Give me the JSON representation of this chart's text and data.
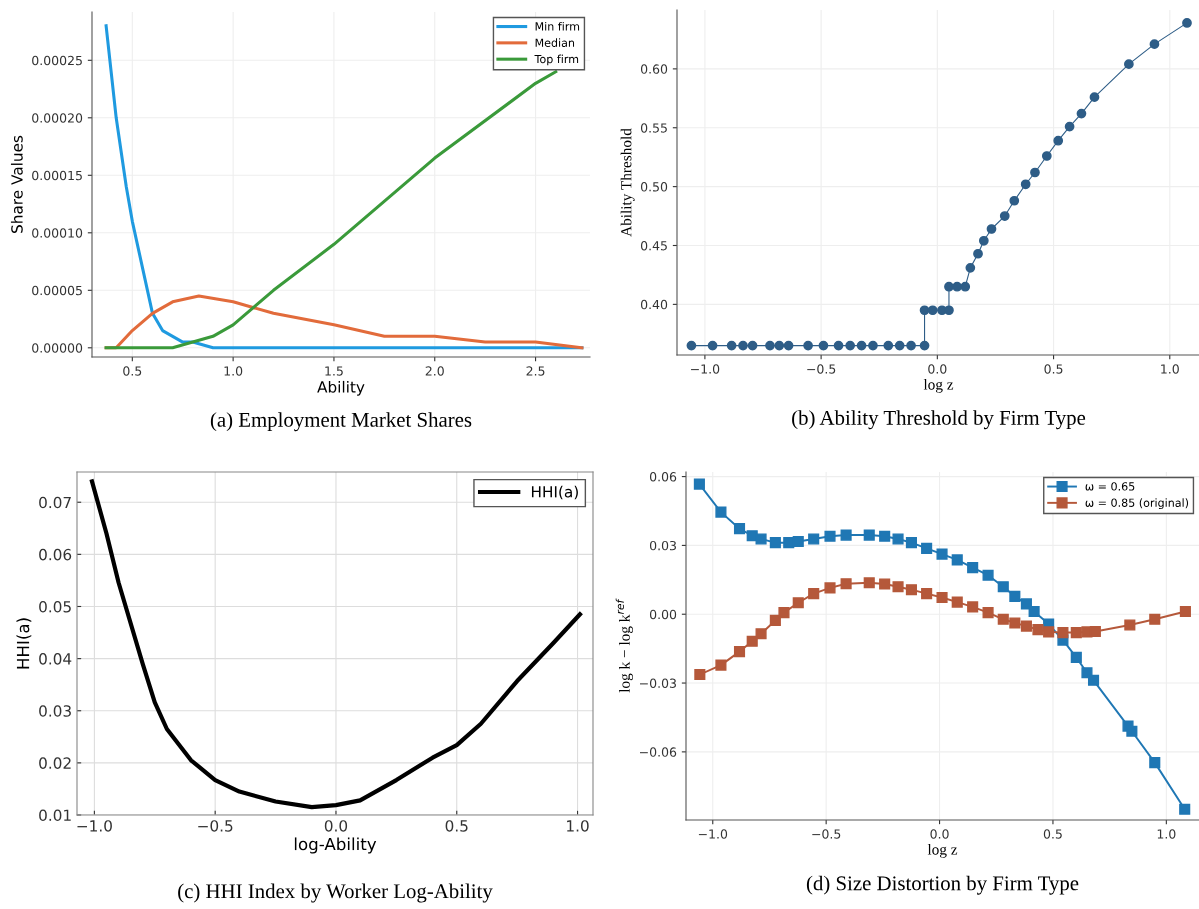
{
  "chart_data": [
    {
      "type": "line",
      "title": "(a) Employment Market Shares",
      "xlabel": "Ability",
      "ylabel": "Share Values",
      "xlim": [
        0.3,
        2.77
      ],
      "xticks": [
        0.5,
        {
          "value": 1.0,
          "label": "1.0"
        },
        1.5,
        {
          "value": 2.0,
          "label": "2.0"
        },
        2.5
      ],
      "ylim": [
        -8e-06,
        0.000292
      ],
      "yticks": [
        {
          "value": 0,
          "label": "0.00000"
        },
        {
          "value": 5e-05,
          "label": "0.00005"
        },
        {
          "value": 0.0001,
          "label": "0.00010"
        },
        {
          "value": 0.00015,
          "label": "0.00015"
        },
        {
          "value": 0.0002,
          "label": "0.00020"
        },
        {
          "value": 0.00025,
          "label": "0.00025"
        }
      ],
      "grid": true,
      "legend": "top right",
      "marker": "none",
      "line_style": "solid",
      "series": [
        {
          "name": "Min firm",
          "color": "#1f9ae0",
          "x": [
            0.37,
            0.42,
            0.47,
            0.5,
            0.55,
            0.6,
            0.65,
            0.7,
            0.75,
            0.8,
            0.9,
            1.0,
            1.5,
            2.0,
            2.5,
            2.73
          ],
          "values": [
            0.00028,
            0.0002,
            0.00014,
            0.00011,
            7e-05,
            3e-05,
            1.5e-05,
            1e-05,
            5e-06,
            5e-06,
            0,
            0,
            0,
            0,
            0,
            0
          ]
        },
        {
          "name": "Median",
          "color": "#e26b3b",
          "x": [
            0.37,
            0.42,
            0.5,
            0.6,
            0.7,
            0.83,
            1.0,
            1.2,
            1.5,
            1.75,
            2.0,
            2.25,
            2.5,
            2.73
          ],
          "values": [
            0,
            0,
            1.5e-05,
            3e-05,
            4e-05,
            4.5e-05,
            4e-05,
            3e-05,
            2e-05,
            1e-05,
            1e-05,
            5e-06,
            5e-06,
            0
          ]
        },
        {
          "name": "Top firm",
          "color": "#3a9a3a",
          "x": [
            0.37,
            0.5,
            0.6,
            0.7,
            0.8,
            0.9,
            1.0,
            1.1,
            1.2,
            1.5,
            2.0,
            2.5,
            2.6
          ],
          "values": [
            0,
            0,
            0,
            0,
            5e-06,
            1e-05,
            2e-05,
            3.5e-05,
            5e-05,
            9e-05,
            0.000165,
            0.00023,
            0.00024
          ]
        }
      ]
    },
    {
      "type": "scatter",
      "title": "(b) Ability Threshold by Firm Type",
      "xlabel": "log z",
      "ylabel": "Ability Threshold",
      "xlim": [
        -1.12,
        1.13
      ],
      "xticks": [
        {
          "value": -1.0,
          "label": "−1.0"
        },
        {
          "value": -0.5,
          "label": "−0.5"
        },
        {
          "value": 0.0,
          "label": "0.0"
        },
        {
          "value": 0.5,
          "label": "0.5"
        },
        {
          "value": 1.0,
          "label": "1.0"
        }
      ],
      "ylim": [
        0.357,
        0.65
      ],
      "yticks": [
        {
          "value": 0.4,
          "label": "0.40"
        },
        {
          "value": 0.45,
          "label": "0.45"
        },
        {
          "value": 0.5,
          "label": "0.50"
        },
        {
          "value": 0.55,
          "label": "0.55"
        },
        {
          "value": 0.6,
          "label": "0.60"
        }
      ],
      "grid": true,
      "series": [
        {
          "type": "line",
          "color": "#2e5d87",
          "marker": "circle",
          "line_style": "solid",
          "x": [
            -1.058,
            -0.967,
            -0.885,
            -0.836,
            -0.795,
            -0.72,
            -0.68,
            -0.64,
            -0.556,
            -0.49,
            -0.425,
            -0.375,
            -0.326,
            -0.277,
            -0.211,
            -0.162,
            -0.113,
            -0.055,
            -0.055,
            -0.02,
            0.02,
            0.05,
            0.05,
            0.085,
            0.12,
            0.142,
            0.175,
            0.2,
            0.233,
            0.29,
            0.331,
            0.38,
            0.42,
            0.471,
            0.52,
            0.569,
            0.62,
            0.676,
            0.824,
            0.934,
            1.074
          ],
          "values": [
            0.365,
            0.365,
            0.365,
            0.365,
            0.365,
            0.365,
            0.365,
            0.365,
            0.365,
            0.365,
            0.365,
            0.365,
            0.365,
            0.365,
            0.365,
            0.365,
            0.365,
            0.365,
            0.395,
            0.395,
            0.395,
            0.395,
            0.415,
            0.415,
            0.415,
            0.431,
            0.443,
            0.454,
            0.464,
            0.475,
            0.488,
            0.502,
            0.512,
            0.526,
            0.539,
            0.551,
            0.562,
            0.576,
            0.604,
            0.621,
            0.639
          ]
        }
      ]
    },
    {
      "type": "line",
      "title": "(c) HHI Index by Worker Log-Ability",
      "xlabel": "log-Ability",
      "ylabel": "HHI(a)",
      "xlim": [
        -1.072,
        1.064
      ],
      "xticks": [
        {
          "value": -1.0,
          "label": "−1.0"
        },
        {
          "value": -0.5,
          "label": "−0.5"
        },
        {
          "value": 0.0,
          "label": "0.0"
        },
        {
          "value": 0.5,
          "label": "0.5"
        },
        {
          "value": 1.0,
          "label": "1.0"
        }
      ],
      "ylim": [
        0.01,
        0.0758
      ],
      "yticks": [
        0.01,
        0.02,
        0.03,
        0.04,
        0.05,
        0.06,
        0.07
      ],
      "grid": true,
      "legend": "top right",
      "marker": "none",
      "line_style": "solid",
      "series": [
        {
          "name": "HHI(a)",
          "color": "#000000",
          "x": [
            -1.01,
            -0.95,
            -0.9,
            -0.8,
            -0.75,
            -0.7,
            -0.6,
            -0.5,
            -0.4,
            -0.25,
            -0.1,
            0.0,
            0.1,
            0.25,
            0.4,
            0.5,
            0.6,
            0.75,
            0.9,
            1.01
          ],
          "values": [
            0.074,
            0.064,
            0.0546,
            0.039,
            0.0316,
            0.0265,
            0.0205,
            0.0167,
            0.0145,
            0.0126,
            0.0115,
            0.0119,
            0.0128,
            0.0167,
            0.021,
            0.0234,
            0.0275,
            0.0357,
            0.043,
            0.0485
          ]
        }
      ]
    },
    {
      "type": "line",
      "title": "(d) Size Distortion by Firm Type",
      "xlabel": "log z",
      "ylabel": "log k − log k$^{ref}$",
      "xlim": [
        -1.118,
        1.144
      ],
      "xticks": [
        {
          "value": -1.0,
          "label": "−1.0"
        },
        {
          "value": -0.5,
          "label": "−0.5"
        },
        {
          "value": 0.0,
          "label": "0.0"
        },
        {
          "value": 0.5,
          "label": "0.5"
        },
        {
          "value": 1.0,
          "label": "1.0"
        }
      ],
      "ylim": [
        -0.0897,
        0.062
      ],
      "yticks": [
        {
          "value": -0.06,
          "label": "−0.06"
        },
        {
          "value": -0.03,
          "label": "−0.03"
        },
        {
          "value": 0.0,
          "label": "0.00"
        },
        {
          "value": 0.03,
          "label": "0.03"
        },
        {
          "value": 0.06,
          "label": "0.06"
        }
      ],
      "grid": true,
      "legend": "top right",
      "marker": "square",
      "line_style": "solid",
      "series": [
        {
          "name": "ω = 0.65",
          "color": "#1f77b4",
          "x": [
            -1.059,
            -0.964,
            -0.882,
            -0.826,
            -0.787,
            -0.724,
            -0.665,
            -0.623,
            -0.555,
            -0.483,
            -0.412,
            -0.31,
            -0.242,
            -0.183,
            -0.124,
            -0.057,
            0.011,
            0.078,
            0.146,
            0.214,
            0.281,
            0.332,
            0.383,
            0.417,
            0.481,
            0.544,
            0.603,
            0.65,
            0.679,
            0.831,
            0.848,
            0.949,
            1.081
          ],
          "values": [
            0.0567,
            0.0445,
            0.0373,
            0.0342,
            0.0328,
            0.0312,
            0.0312,
            0.0317,
            0.0328,
            0.034,
            0.0345,
            0.0345,
            0.034,
            0.0328,
            0.0312,
            0.0287,
            0.0262,
            0.0237,
            0.0203,
            0.017,
            0.012,
            0.0078,
            0.0045,
            0.0012,
            -0.0043,
            -0.0113,
            -0.0188,
            -0.0255,
            -0.0288,
            -0.0488,
            -0.051,
            -0.0647,
            -0.085
          ]
        },
        {
          "name": "ω = 0.85 (original)",
          "color": "#b5583a",
          "x": [
            -1.057,
            -0.964,
            -0.882,
            -0.826,
            -0.787,
            -0.724,
            -0.686,
            -0.623,
            -0.555,
            -0.483,
            -0.412,
            -0.31,
            -0.242,
            -0.183,
            -0.124,
            -0.057,
            0.011,
            0.078,
            0.146,
            0.214,
            0.281,
            0.332,
            0.383,
            0.434,
            0.481,
            0.544,
            0.603,
            0.65,
            0.687,
            0.839,
            0.949,
            1.084
          ],
          "values": [
            -0.0263,
            -0.0222,
            -0.0163,
            -0.0118,
            -0.0085,
            -0.0027,
            0.0007,
            0.005,
            0.009,
            0.0115,
            0.0133,
            0.0137,
            0.0132,
            0.012,
            0.0107,
            0.009,
            0.0073,
            0.0053,
            0.0032,
            0.0007,
            -0.0022,
            -0.0038,
            -0.0052,
            -0.0067,
            -0.0077,
            -0.008,
            -0.008,
            -0.0077,
            -0.0075,
            -0.0047,
            -0.0022,
            0.0012
          ]
        }
      ]
    }
  ]
}
